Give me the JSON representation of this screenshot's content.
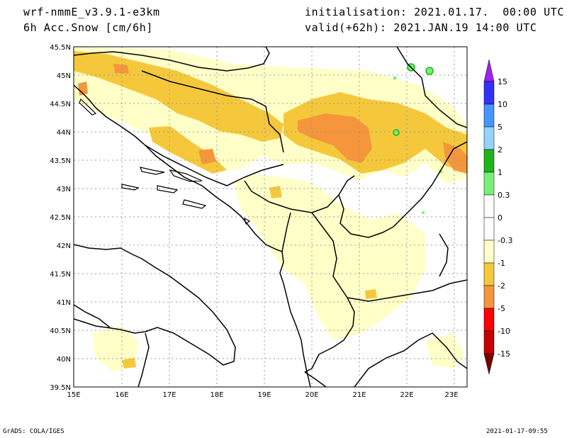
{
  "header": {
    "model": "wrf-nmmE_v3.9.1-e3km",
    "variable": "6h Acc.Snow [cm/6h]",
    "init": "initialisation: 2021.01.17.  00:00 UTC",
    "valid": "valid(+62h): 2021.JAN.19 14:00 UTC"
  },
  "footer": {
    "left": "GrADS: COLA/IGES",
    "right": "2021-01-17-09:55"
  },
  "map": {
    "lat_labels": [
      "45.5N",
      "45N",
      "44.5N",
      "44N",
      "43.5N",
      "43N",
      "42.5N",
      "42N",
      "41.5N",
      "41N",
      "40.5N",
      "40N",
      "39.5N"
    ],
    "lon_labels": [
      "15E",
      "16E",
      "17E",
      "18E",
      "19E",
      "20E",
      "21E",
      "22E",
      "23E"
    ],
    "extent": {
      "lon": [
        15,
        23.3
      ],
      "lat": [
        39.5,
        45.5
      ]
    },
    "grid": "dotted"
  },
  "colorbar": {
    "labels": [
      "15",
      "10",
      "5",
      "2",
      "1",
      "0.3",
      "0",
      "-0.3",
      "-1",
      "-2",
      "-5",
      "-10",
      "-15"
    ],
    "colors": [
      "#a020f0",
      "#3232ff",
      "#4696ff",
      "#96d2fa",
      "#1eb41e",
      "#78f078",
      "#ffffff",
      "#ffffc8",
      "#f5c83c",
      "#f5963c",
      "#ff0000",
      "#c80000",
      "#960000",
      "#780000"
    ]
  },
  "palette": {
    "light": "#ffffc8",
    "yellow": "#f5c83c",
    "orange": "#f5963c",
    "green": "#1eb41e",
    "lightgreen": "#78f078"
  }
}
